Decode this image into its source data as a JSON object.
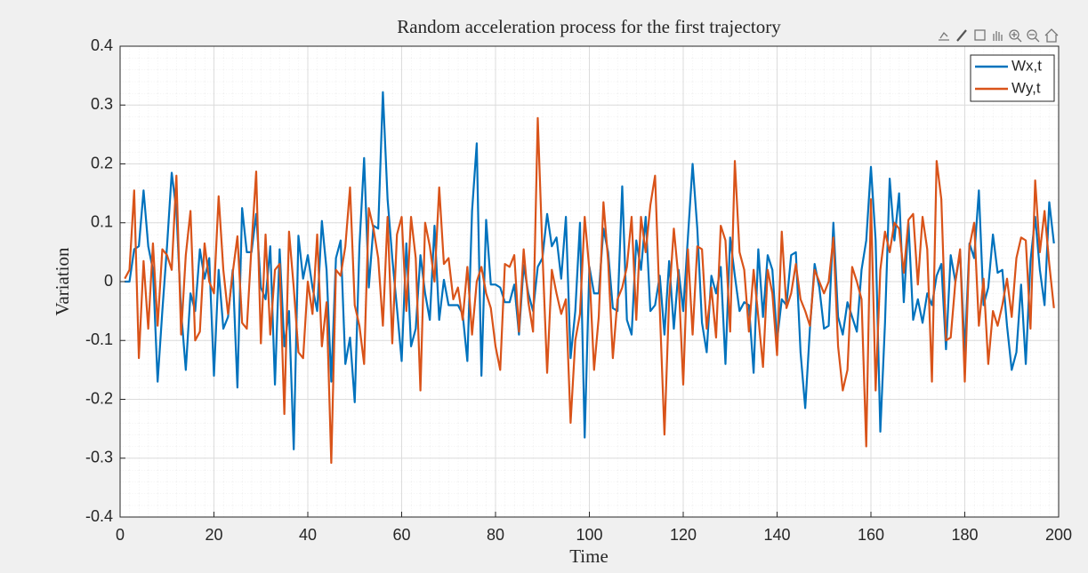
{
  "chart_data": {
    "type": "line",
    "title": "Random acceleration process for the first trajectory",
    "x_label": "Time",
    "y_label": "Variation",
    "x": [
      1,
      2,
      3,
      4,
      5,
      6,
      7,
      8,
      9,
      10,
      11,
      12,
      13,
      14,
      15,
      16,
      17,
      18,
      19,
      20,
      21,
      22,
      23,
      24,
      25,
      26,
      27,
      28,
      29,
      30,
      31,
      32,
      33,
      34,
      35,
      36,
      37,
      38,
      39,
      40,
      41,
      42,
      43,
      44,
      45,
      46,
      47,
      48,
      49,
      50,
      51,
      52,
      53,
      54,
      55,
      56,
      57,
      58,
      59,
      60,
      61,
      62,
      63,
      64,
      65,
      66,
      67,
      68,
      69,
      70,
      71,
      72,
      73,
      74,
      75,
      76,
      77,
      78,
      79,
      80,
      81,
      82,
      83,
      84,
      85,
      86,
      87,
      88,
      89,
      90,
      91,
      92,
      93,
      94,
      95,
      96,
      97,
      98,
      99,
      100,
      101,
      102,
      103,
      104,
      105,
      106,
      107,
      108,
      109,
      110,
      111,
      112,
      113,
      114,
      115,
      116,
      117,
      118,
      119,
      120,
      121,
      122,
      123,
      124,
      125,
      126,
      127,
      128,
      129,
      130,
      131,
      132,
      133,
      134,
      135,
      136,
      137,
      138,
      139,
      140,
      141,
      142,
      143,
      144,
      145,
      146,
      147,
      148,
      149,
      150,
      151,
      152,
      153,
      154,
      155,
      156,
      157,
      158,
      159,
      160,
      161,
      162,
      163,
      164,
      165,
      166,
      167,
      168,
      169,
      170,
      171,
      172,
      173,
      174,
      175,
      176,
      177,
      178,
      179,
      180,
      181,
      182,
      183,
      184,
      185,
      186,
      187,
      188,
      189,
      190,
      191,
      192,
      193,
      194,
      195,
      196,
      197,
      198,
      199
    ],
    "series": [
      {
        "name": "Wx,t",
        "color": "#0072bd",
        "values": [
          0,
          0,
          0.055,
          0.06,
          0.155,
          0.06,
          0.02,
          -0.17,
          -0.05,
          0.06,
          0.185,
          0.12,
          -0.05,
          -0.15,
          -0.02,
          -0.05,
          0.055,
          0.005,
          0.04,
          -0.16,
          0.02,
          -0.08,
          -0.06,
          0.02,
          -0.18,
          0.125,
          0.05,
          0.05,
          0.115,
          -0.01,
          -0.03,
          0.06,
          -0.175,
          0.055,
          -0.11,
          -0.05,
          -0.285,
          0.078,
          0.005,
          0.045,
          -0.01,
          -0.05,
          0.103,
          0.02,
          -0.17,
          0.04,
          0.07,
          -0.14,
          -0.095,
          -0.205,
          0.06,
          0.21,
          -0.01,
          0.095,
          0.09,
          0.322,
          0.14,
          0.04,
          -0.045,
          -0.135,
          0.065,
          -0.11,
          -0.08,
          0.045,
          -0.02,
          -0.065,
          0.095,
          -0.065,
          0.003,
          -0.04,
          -0.04,
          -0.04,
          -0.055,
          -0.135,
          0.12,
          0.235,
          -0.16,
          0.105,
          -0.005,
          -0.005,
          -0.01,
          -0.035,
          -0.035,
          -0.005,
          -0.09,
          0.028,
          -0.02,
          -0.05,
          0.025,
          0.04,
          0.115,
          0.06,
          0.075,
          0.005,
          0.11,
          -0.13,
          -0.05,
          0.1,
          -0.265,
          0.025,
          -0.02,
          -0.02,
          0.09,
          0.05,
          -0.045,
          -0.05,
          0.162,
          -0.065,
          -0.09,
          0.07,
          0.02,
          0.11,
          -0.05,
          -0.04,
          0.01,
          -0.09,
          0.035,
          -0.08,
          0.02,
          -0.05,
          0.075,
          0.2,
          0.09,
          -0.07,
          -0.12,
          0.01,
          -0.02,
          0.025,
          -0.14,
          0.075,
          0.01,
          -0.05,
          -0.035,
          -0.04,
          -0.155,
          0.055,
          -0.06,
          0.045,
          0.02,
          -0.1,
          -0.03,
          -0.04,
          0.045,
          0.05,
          -0.12,
          -0.215,
          -0.08,
          0.03,
          -0.01,
          -0.08,
          -0.075,
          0.1,
          -0.06,
          -0.09,
          -0.035,
          -0.06,
          -0.085,
          0.02,
          0.07,
          0.195,
          0.07,
          -0.255,
          -0.07,
          0.175,
          0.07,
          0.15,
          -0.035,
          0.1,
          -0.065,
          -0.03,
          -0.07,
          -0.02,
          -0.04,
          0.01,
          0.03,
          -0.115,
          0.045,
          0,
          0.05,
          -0.12,
          0.065,
          0.04,
          0.155,
          -0.04,
          -0.01,
          0.08,
          0.015,
          0.02,
          -0.075,
          -0.15,
          -0.12,
          -0.005,
          -0.14,
          0.035,
          0.11,
          0.02,
          -0.04,
          0.135,
          0.065
        ]
      },
      {
        "name": "Wy,t",
        "color": "#d95319",
        "values": [
          0.005,
          0.02,
          0.155,
          -0.13,
          0.035,
          -0.08,
          0.065,
          -0.075,
          0.055,
          0.045,
          0.02,
          0.18,
          -0.09,
          0.045,
          0.12,
          -0.1,
          -0.085,
          0.065,
          0,
          -0.02,
          0.145,
          0.02,
          -0.055,
          0.015,
          0.077,
          -0.07,
          -0.08,
          0.06,
          0.187,
          -0.105,
          0.08,
          -0.09,
          0.02,
          0.03,
          -0.225,
          0.085,
          -0.01,
          -0.12,
          -0.13,
          0,
          -0.055,
          0.08,
          -0.11,
          -0.035,
          -0.308,
          0.02,
          0.01,
          0.06,
          0.16,
          -0.04,
          -0.075,
          -0.14,
          0.125,
          0.09,
          0.04,
          -0.075,
          0.11,
          -0.105,
          0.08,
          0.11,
          -0.05,
          0.11,
          0.04,
          -0.185,
          0.1,
          0.06,
          0,
          0.16,
          0.03,
          0.04,
          -0.03,
          -0.01,
          -0.065,
          0.025,
          -0.09,
          0,
          0.025,
          -0.02,
          -0.045,
          -0.11,
          -0.15,
          0.03,
          0.025,
          0.045,
          -0.085,
          0.055,
          -0.035,
          -0.085,
          0.278,
          0.05,
          -0.155,
          0.02,
          -0.02,
          -0.055,
          -0.03,
          -0.24,
          -0.1,
          -0.055,
          0.11,
          0.02,
          -0.15,
          -0.06,
          0.135,
          0.035,
          -0.13,
          -0.03,
          -0.01,
          0.025,
          0.11,
          -0.065,
          0.11,
          0.05,
          0.13,
          0.18,
          -0.045,
          -0.26,
          -0.03,
          0.09,
          0.005,
          -0.175,
          0.055,
          -0.09,
          0.06,
          0.055,
          -0.08,
          -0.01,
          -0.095,
          0.095,
          0.07,
          -0.085,
          0.205,
          0.05,
          0.02,
          -0.085,
          0.02,
          -0.06,
          -0.145,
          0.02,
          -0.02,
          -0.125,
          0.085,
          -0.045,
          -0.02,
          0.03,
          -0.03,
          -0.05,
          -0.075,
          0.02,
          0,
          -0.02,
          0,
          0.075,
          -0.11,
          -0.185,
          -0.15,
          0.025,
          0,
          -0.03,
          -0.28,
          0.14,
          -0.185,
          0.02,
          0.085,
          0.05,
          0.1,
          0.09,
          0.015,
          0.105,
          0.115,
          -0.005,
          0.11,
          0.055,
          -0.17,
          0.205,
          0.14,
          -0.1,
          -0.095,
          0,
          0.055,
          -0.17,
          0.06,
          0.1,
          -0.075,
          0.005,
          -0.14,
          -0.05,
          -0.075,
          -0.04,
          0.005,
          -0.06,
          0.04,
          0.075,
          0.07,
          -0.08,
          0.172,
          0.05,
          0.12,
          0.03,
          -0.045
        ]
      }
    ],
    "xlim": [
      0,
      200
    ],
    "xticks": [
      0,
      20,
      40,
      60,
      80,
      100,
      120,
      140,
      160,
      180,
      200
    ],
    "ylim": [
      -0.4,
      0.4
    ],
    "yticks": [
      -0.4,
      -0.3,
      -0.2,
      -0.1,
      0,
      0.1,
      0.2,
      0.3,
      0.4
    ],
    "grid": true,
    "legend": "northeast"
  }
}
